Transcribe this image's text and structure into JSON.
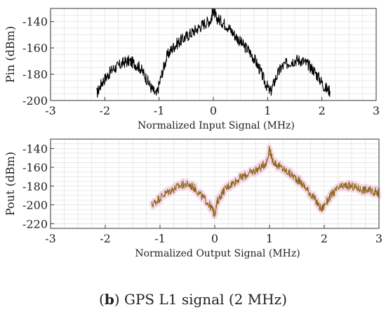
{
  "caption": {
    "label": "b",
    "text": "GPS L1 signal (2 MHz)"
  },
  "chart_data": [
    {
      "type": "line",
      "xlabel": "Normalized Input Signal (MHz)",
      "ylabel": "Pin (dBm)",
      "xlim": [
        -3,
        3
      ],
      "ylim": [
        -200,
        -130
      ],
      "xticks": [
        -3,
        -2,
        -1,
        0,
        1,
        2,
        3
      ],
      "yticks": [
        -200,
        -180,
        -160,
        -140
      ],
      "grid": true,
      "series": [
        {
          "color": "#000000",
          "x": [
            -2.15,
            -2.05,
            -1.95,
            -1.85,
            -1.75,
            -1.65,
            -1.55,
            -1.45,
            -1.35,
            -1.25,
            -1.15,
            -1.05,
            -0.95,
            -0.85,
            -0.75,
            -0.65,
            -0.55,
            -0.45,
            -0.35,
            -0.25,
            -0.15,
            -0.05,
            0.0,
            0.05,
            0.15,
            0.25,
            0.35,
            0.45,
            0.55,
            0.65,
            0.75,
            0.85,
            0.95,
            1.05,
            1.15,
            1.25,
            1.35,
            1.45,
            1.55,
            1.65,
            1.75,
            1.85,
            1.95,
            2.05,
            2.15
          ],
          "y": [
            -195,
            -186,
            -181,
            -176,
            -174,
            -171,
            -170,
            -172,
            -175,
            -182,
            -190,
            -196,
            -180,
            -166,
            -160,
            -156,
            -153,
            -150,
            -147,
            -144,
            -141,
            -139,
            -131,
            -137,
            -140,
            -143,
            -148,
            -153,
            -158,
            -162,
            -168,
            -176,
            -186,
            -194,
            -183,
            -175,
            -172,
            -170,
            -169,
            -170,
            -173,
            -177,
            -183,
            -190,
            -193
          ]
        }
      ]
    },
    {
      "type": "line",
      "xlabel": "Normalized Output Signal (MHz)",
      "ylabel": "Pout (dBm)",
      "xlim": [
        -3,
        3
      ],
      "ylim": [
        -225,
        -130
      ],
      "xticks": [
        -3,
        -2,
        -1,
        0,
        1,
        2,
        3
      ],
      "yticks": [
        -220,
        -200,
        -180,
        -160,
        -140
      ],
      "grid": true,
      "series": [
        {
          "color": "#8b6a1e",
          "glow": "#f2b8d6",
          "x": [
            -1.15,
            -1.05,
            -0.95,
            -0.85,
            -0.75,
            -0.65,
            -0.55,
            -0.45,
            -0.35,
            -0.25,
            -0.15,
            -0.05,
            0.0,
            0.05,
            0.15,
            0.25,
            0.35,
            0.45,
            0.55,
            0.65,
            0.75,
            0.85,
            0.95,
            1.0,
            1.05,
            1.15,
            1.25,
            1.35,
            1.45,
            1.55,
            1.65,
            1.75,
            1.85,
            1.95,
            2.05,
            2.15,
            2.25,
            2.35,
            2.45,
            2.55,
            2.65,
            2.75,
            2.85,
            2.95,
            3.0
          ],
          "y": [
            -200,
            -195,
            -190,
            -186,
            -183,
            -180,
            -178,
            -179,
            -183,
            -190,
            -196,
            -204,
            -210,
            -196,
            -186,
            -180,
            -176,
            -172,
            -169,
            -166,
            -163,
            -160,
            -154,
            -140,
            -152,
            -158,
            -162,
            -166,
            -170,
            -175,
            -181,
            -188,
            -196,
            -205,
            -196,
            -188,
            -183,
            -180,
            -180,
            -181,
            -183,
            -184,
            -185,
            -186,
            -188
          ]
        }
      ]
    }
  ]
}
